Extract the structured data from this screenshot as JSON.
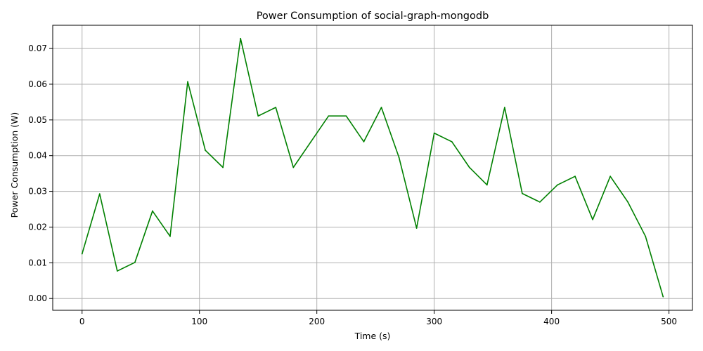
{
  "chart_data": {
    "type": "line",
    "title": "Power Consumption of social-graph-mongodb",
    "xlabel": "Time (s)",
    "ylabel": "Power Consumption (W)",
    "xlim": [
      -25,
      520
    ],
    "ylim": [
      -0.0033,
      0.0765
    ],
    "x_ticks": [
      0,
      100,
      200,
      300,
      400,
      500
    ],
    "x_tick_labels": [
      "0",
      "100",
      "200",
      "300",
      "400",
      "500"
    ],
    "y_ticks": [
      0.0,
      0.01,
      0.02,
      0.03,
      0.04,
      0.05,
      0.06,
      0.07
    ],
    "y_tick_labels": [
      "0.00",
      "0.01",
      "0.02",
      "0.03",
      "0.04",
      "0.05",
      "0.06",
      "0.07"
    ],
    "grid": true,
    "line_color": "#008000",
    "series": [
      {
        "x": [
          0,
          15,
          30,
          45,
          60,
          75,
          90,
          105,
          120,
          135,
          150,
          165,
          180,
          195,
          210,
          225,
          240,
          255,
          270,
          285,
          300,
          315,
          330,
          345,
          360,
          375,
          390,
          405,
          420,
          435,
          450,
          465,
          480,
          495
        ],
        "values": [
          0.0125,
          0.0293,
          0.0077,
          0.0101,
          0.0245,
          0.0174,
          0.0607,
          0.0415,
          0.0367,
          0.0728,
          0.0511,
          0.0535,
          0.0367,
          0.0439,
          0.0511,
          0.0511,
          0.0439,
          0.0535,
          0.0395,
          0.0197,
          0.0463,
          0.0439,
          0.0367,
          0.0318,
          0.0535,
          0.0294,
          0.027,
          0.0318,
          0.0342,
          0.0221,
          0.0342,
          0.027,
          0.0174,
          0.0005
        ]
      }
    ]
  }
}
